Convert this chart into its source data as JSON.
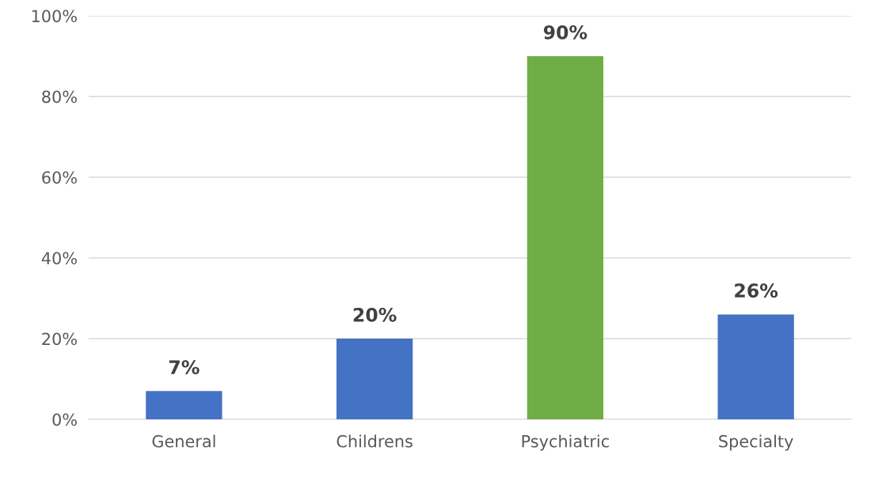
{
  "chart_data": {
    "type": "bar",
    "categories": [
      "General",
      "Childrens",
      "Psychiatric",
      "Specialty"
    ],
    "values": [
      7,
      20,
      90,
      26
    ],
    "colors": [
      "#4472c4",
      "#4472c4",
      "#70ad47",
      "#4472c4"
    ],
    "value_labels": [
      "7%",
      "20%",
      "90%",
      "26%"
    ],
    "ylim": [
      0,
      100
    ],
    "yticks": [
      {
        "value": 0,
        "label": "0%"
      },
      {
        "value": 20,
        "label": "20%"
      },
      {
        "value": 40,
        "label": "40%"
      },
      {
        "value": 60,
        "label": "60%"
      },
      {
        "value": 80,
        "label": "80%"
      },
      {
        "value": 100,
        "label": "100%"
      }
    ],
    "grid": "y"
  }
}
